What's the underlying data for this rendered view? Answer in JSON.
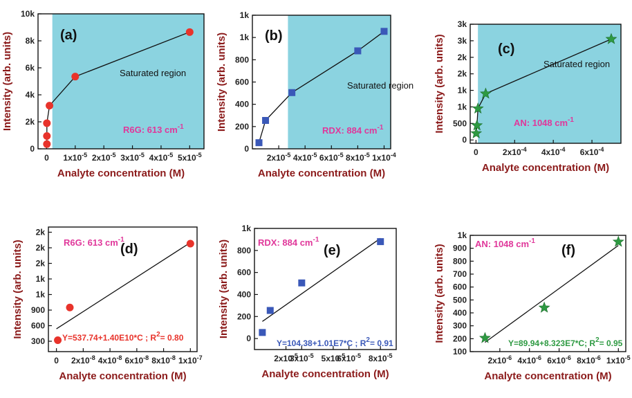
{
  "figure": {
    "colors": {
      "red": "#e8332b",
      "blue": "#3a58b8",
      "green": "#2e9a42",
      "region": "#8bd3e0",
      "axis_title": "#8b1a1a",
      "peak": "#e0379a"
    }
  },
  "chart_data": [
    {
      "type": "line",
      "panel": "(a)",
      "marker": "circle",
      "color": "#e8332b",
      "xlabel": "Analyte concentration (M)",
      "ylabel": "Intensity (arb. units)",
      "xlim": [
        -3e-06,
        5.5e-05
      ],
      "ylim": [
        0,
        10000
      ],
      "xticks": [
        0,
        1e-05,
        2e-05,
        3e-05,
        4e-05,
        5e-05
      ],
      "xtick_labels": [
        "0",
        "1x10-5",
        "2x10-5",
        "3x10-5",
        "4x10-5",
        "5x10-5"
      ],
      "yticks": [
        0,
        2000,
        4000,
        6000,
        8000,
        10000
      ],
      "ytick_labels": [
        "0",
        "2k",
        "4k",
        "6k",
        "8k",
        "10k"
      ],
      "region_start": 2e-06,
      "region_label": "Saturated region",
      "peak_label": "R6G: 613 cm",
      "peak_sup": "-1",
      "points": [
        [
          1e-07,
          350
        ],
        [
          1e-07,
          950
        ],
        [
          1e-07,
          1900
        ],
        [
          1e-06,
          3200
        ],
        [
          1e-05,
          5350
        ],
        [
          5e-05,
          8650
        ]
      ],
      "line": [
        [
          1e-07,
          350
        ],
        [
          1e-07,
          1900
        ],
        [
          1e-06,
          3200
        ],
        [
          1e-05,
          5350
        ],
        [
          5e-05,
          8650
        ]
      ]
    },
    {
      "type": "line",
      "panel": "(b)",
      "marker": "square",
      "color": "#3a58b8",
      "xlabel": "Analyte concentration (M)",
      "ylabel": "Intensity (arb. units)",
      "xlim": [
        0,
        0.000105
      ],
      "ylim": [
        0,
        1200
      ],
      "xticks": [
        2e-05,
        4e-05,
        6e-05,
        8e-05,
        0.0001
      ],
      "xtick_labels": [
        "2x10-5",
        "4x10-5",
        "6x10-5",
        "8x10-5",
        "1x10-4"
      ],
      "yticks": [
        0,
        200,
        400,
        600,
        800,
        1000,
        1200
      ],
      "ytick_labels": [
        "0",
        "200",
        "400",
        "600",
        "800",
        "1k",
        "1k"
      ],
      "region_start": 2.7e-05,
      "region_label": "Saturated region",
      "peak_label": "RDX: 884 cm",
      "peak_sup": "-1",
      "points": [
        [
          5e-06,
          55
        ],
        [
          1e-05,
          255
        ],
        [
          3e-05,
          505
        ],
        [
          8e-05,
          880
        ],
        [
          0.0001,
          1055
        ]
      ],
      "line": [
        [
          5e-06,
          55
        ],
        [
          1e-05,
          255
        ],
        [
          3e-05,
          505
        ],
        [
          8e-05,
          880
        ],
        [
          0.0001,
          1055
        ]
      ]
    },
    {
      "type": "line",
      "panel": "(c)",
      "marker": "star",
      "color": "#2e9a42",
      "xlabel": "Analyte concentration (M)",
      "ylabel": "Intensity (arb. units)",
      "xlim": [
        -3e-05,
        0.00075
      ],
      "ylim": [
        -100,
        3500
      ],
      "xticks": [
        0,
        0.0002,
        0.0004,
        0.0006
      ],
      "xtick_labels": [
        "0",
        "2x10-4",
        "4x10-4",
        "6x10-4"
      ],
      "yticks": [
        0,
        500,
        1000,
        1500,
        2000,
        2500,
        3000,
        3500
      ],
      "ytick_labels": [
        "0",
        "500",
        "1k",
        "1k",
        "2k",
        "2k",
        "3k",
        "3k"
      ],
      "region_start": 1e-05,
      "region_label": "Saturated region",
      "peak_label": "AN: 1048 cm",
      "peak_sup": "-1",
      "points": [
        [
          1e-06,
          200
        ],
        [
          5e-06,
          440
        ],
        [
          1e-05,
          950
        ],
        [
          5e-05,
          1400
        ],
        [
          0.0007,
          3050
        ]
      ],
      "line": [
        [
          1e-06,
          200
        ],
        [
          5e-06,
          440
        ],
        [
          1e-05,
          950
        ],
        [
          5e-05,
          1400
        ],
        [
          0.0007,
          3050
        ]
      ]
    },
    {
      "type": "scatter",
      "panel": "(d)",
      "marker": "circle",
      "color": "#e8332b",
      "xlabel": "Analyte concentration (M)",
      "ylabel": "Intensity (arb. units)",
      "xlim": [
        -6e-09,
        1.05e-07
      ],
      "ylim": [
        100,
        2500
      ],
      "xticks": [
        0,
        2e-08,
        4e-08,
        6e-08,
        8e-08,
        1e-07
      ],
      "xtick_labels": [
        "0",
        "2x10-8",
        "4x10-8",
        "6x10-8",
        "8x10-8",
        "1x10-7"
      ],
      "yticks": [
        300,
        600,
        900,
        1200,
        1500,
        1800,
        2100,
        2400
      ],
      "ytick_labels": [
        "300",
        "600",
        "900",
        "1k",
        "1k",
        "2k",
        "2k",
        "2k"
      ],
      "peak_label": "R6G: 613 cm",
      "peak_sup": "-1",
      "fit_text": "Y=537.74+1.40E10*C ; R",
      "fit_sup": "2",
      "fit_tail": "= 0.80",
      "fit_color": "#e8332b",
      "points": [
        [
          1e-09,
          320
        ],
        [
          1e-08,
          950
        ],
        [
          1e-07,
          2180
        ]
      ],
      "fit_line": [
        [
          0,
          538
        ],
        [
          1e-07,
          2200
        ]
      ]
    },
    {
      "type": "scatter",
      "panel": "(e)",
      "marker": "square",
      "color": "#3a58b8",
      "xlabel": "Analyte concentration (M)",
      "ylabel": "Intensity (arb. units)",
      "xlim": [
        0,
        9e-05
      ],
      "ylim": [
        -100,
        1000
      ],
      "xticks": [
        2e-05,
        3e-05,
        5e-05,
        6e-05,
        8e-05
      ],
      "xtick_labels": [
        "2x10-5",
        "3x10-5",
        "5x10-5",
        "6x10-5",
        "8x10-5"
      ],
      "yticks": [
        0,
        200,
        400,
        600,
        800,
        1000
      ],
      "ytick_labels": [
        "0",
        "200",
        "400",
        "600",
        "800",
        "1k"
      ],
      "peak_label": "RDX: 884 cm",
      "peak_sup": "-1",
      "fit_text": "Y=104.38+1.01E7*C ; R",
      "fit_sup": "2",
      "fit_tail": "= 0.91",
      "fit_color": "#3a58b8",
      "points": [
        [
          5e-06,
          55
        ],
        [
          1e-05,
          255
        ],
        [
          3e-05,
          505
        ],
        [
          8e-05,
          880
        ]
      ],
      "fit_line": [
        [
          5e-06,
          155
        ],
        [
          8e-05,
          910
        ]
      ]
    },
    {
      "type": "scatter",
      "panel": "(f)",
      "marker": "star",
      "color": "#2e9a42",
      "xlabel": "Analyte concentration (M)",
      "ylabel": "Intensity (arb. units)",
      "xlim": [
        0,
        1.05e-05
      ],
      "ylim": [
        100,
        1000
      ],
      "xticks": [
        2e-06,
        4e-06,
        6e-06,
        8e-06,
        1e-05
      ],
      "xtick_labels": [
        "2x10-6",
        "4x10-6",
        "6x10-6",
        "8x10-6",
        "1x10-5"
      ],
      "yticks": [
        100,
        200,
        300,
        400,
        500,
        600,
        700,
        800,
        900,
        1000
      ],
      "ytick_labels": [
        "100",
        "200",
        "300",
        "400",
        "500",
        "600",
        "700",
        "800",
        "900",
        "1k"
      ],
      "peak_label": "AN: 1048 cm",
      "peak_sup": "-1",
      "fit_text": "Y=89.94+8.323E7*C; R",
      "fit_sup": "2",
      "fit_tail": "= 0.95",
      "fit_color": "#2e9a42",
      "points": [
        [
          1e-06,
          205
        ],
        [
          5e-06,
          440
        ],
        [
          1e-05,
          950
        ]
      ],
      "fit_line": [
        [
          1e-06,
          172
        ],
        [
          1e-05,
          922
        ]
      ]
    }
  ]
}
